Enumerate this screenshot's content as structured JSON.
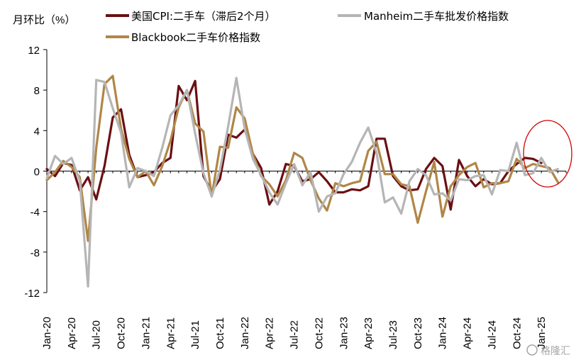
{
  "chart_data": {
    "type": "line",
    "ylabel": "月环比（%）",
    "ylim": [
      -12,
      12
    ],
    "yticks": [
      12,
      8,
      4,
      0,
      -4,
      -8,
      -12
    ],
    "negative_tick_color": "#c00000",
    "x_tick_labels": [
      "Jan-20",
      "Apr-20",
      "Jul-20",
      "Oct-20",
      "Jan-21",
      "Apr-21",
      "Jul-21",
      "Oct-21",
      "Jan-22",
      "Apr-22",
      "Jul-22",
      "Oct-22",
      "Jan-23",
      "Apr-23",
      "Jul-23",
      "Oct-23",
      "Jan-24",
      "Apr-24",
      "Jul-24",
      "Oct-24",
      "Jan-25"
    ],
    "x_tick_indices": [
      0,
      3,
      6,
      9,
      12,
      15,
      18,
      21,
      24,
      27,
      30,
      33,
      36,
      39,
      42,
      45,
      48,
      51,
      54,
      57,
      60
    ],
    "n_months": 64,
    "series": [
      {
        "name": "美国CPI:二手车（滞后2个月）",
        "color": "#6b0f13",
        "values": [
          0.2,
          -0.5,
          0.8,
          0.6,
          -1.9,
          -0.6,
          -2.8,
          0.5,
          5.3,
          6.1,
          1.6,
          -0.6,
          -0.4,
          -0.1,
          0.8,
          1.3,
          8.4,
          7.0,
          8.9,
          -0.5,
          -2.0,
          -0.8,
          3.6,
          3.3,
          4.1,
          1.7,
          0.3,
          -3.3,
          -2.0,
          0.7,
          0.5,
          -1.0,
          -0.8,
          -0.1,
          -1.0,
          -2.1,
          -2.1,
          -1.8,
          -1.9,
          -1.5,
          3.2,
          3.2,
          -0.5,
          -1.5,
          -1.9,
          -1.8,
          0.2,
          1.3,
          0.5,
          -3.8,
          1.1,
          -0.5,
          -1.5,
          -0.8,
          -1.3,
          -1.2,
          0.0,
          0.7,
          1.3,
          1.2,
          0.8,
          null,
          null,
          null
        ]
      },
      {
        "name": "Manheim二手车批发价格指数",
        "color": "#b5b5b5",
        "values": [
          -0.7,
          1.5,
          0.7,
          1.3,
          -1.0,
          -11.4,
          9.0,
          8.8,
          6.2,
          3.8,
          -1.6,
          0.3,
          0.0,
          -0.5,
          2.3,
          5.5,
          6.5,
          8.0,
          3.7,
          -0.2,
          -2.5,
          0.1,
          4.4,
          9.2,
          4.2,
          1.2,
          -0.4,
          -2.1,
          -3.3,
          -1.2,
          0.7,
          -1.4,
          -0.1,
          -4.0,
          -2.5,
          -2.2,
          -0.3,
          0.9,
          2.8,
          4.3,
          1.8,
          -3.1,
          -2.6,
          -4.2,
          -1.0,
          0.2,
          -0.4,
          -2.3,
          -2.2,
          -2.9,
          -0.8,
          -0.9,
          -0.5,
          -0.4,
          -2.3,
          0.1,
          0.0,
          2.8,
          -0.4,
          -0.2,
          1.3,
          -0.1,
          0.2,
          null
        ]
      },
      {
        "name": "Blackbook二手车价格指数",
        "color": "#b08647",
        "values": [
          -0.9,
          -0.1,
          1.0,
          0.4,
          -0.6,
          -6.9,
          2.3,
          8.6,
          9.4,
          4.2,
          1.2,
          -0.6,
          0.0,
          -1.4,
          0.5,
          3.0,
          6.3,
          8.0,
          4.7,
          3.9,
          -2.5,
          2.4,
          2.3,
          6.3,
          5.2,
          1.7,
          -0.5,
          -1.3,
          -2.5,
          -0.9,
          1.8,
          1.3,
          -0.9,
          -2.7,
          -3.9,
          -1.2,
          -1.5,
          -1.2,
          -1.0,
          2.0,
          2.9,
          -0.3,
          -0.3,
          -1.3,
          -1.5,
          -5.1,
          -2.0,
          0.9,
          -4.5,
          -1.5,
          -0.4,
          0.4,
          0.8,
          -1.6,
          -1.2,
          -1.2,
          -1.0,
          1.2,
          0.3,
          0.7,
          0.5,
          0.3,
          -1.1,
          null
        ]
      }
    ]
  },
  "annotation": {
    "shape": "ellipse",
    "color": "#d40000"
  },
  "watermark": {
    "text": "格隆汇"
  }
}
